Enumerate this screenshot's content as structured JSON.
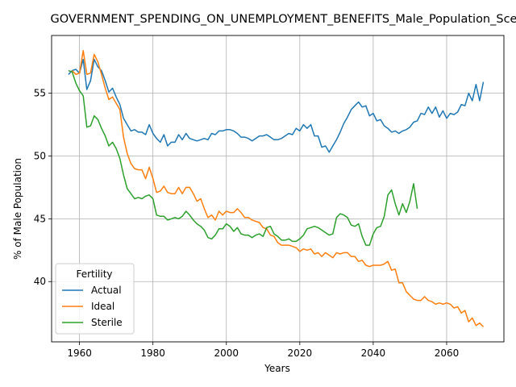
{
  "chart_data": {
    "type": "line",
    "title": "GOVERNMENT_SPENDING_ON_UNEMPLOYMENT_BENEFITS_Male_Population_Sce",
    "xlabel": "Years",
    "ylabel": "% of Male Population",
    "xlim": [
      1952.4,
      2075.6
    ],
    "ylim": [
      35.2,
      59.6
    ],
    "xticks": [
      1960,
      1980,
      2000,
      2020,
      2040,
      2060
    ],
    "yticks": [
      40,
      45,
      50,
      55
    ],
    "grid": true,
    "legend": {
      "title": "Fertility",
      "placement": "lower-left"
    },
    "series": [
      {
        "name": "Actual",
        "color": "#1f77b4",
        "x": [
          1957,
          1958,
          1959,
          1960,
          1961,
          1962,
          1963,
          1964,
          1965,
          1966,
          1967,
          1968,
          1969,
          1970,
          1971,
          1972,
          1973,
          1974,
          1975,
          1976,
          1977,
          1978,
          1979,
          1980,
          1981,
          1982,
          1983,
          1984,
          1985,
          1986,
          1987,
          1988,
          1989,
          1990,
          1991,
          1992,
          1993,
          1994,
          1995,
          1996,
          1997,
          1998,
          1999,
          2000,
          2001,
          2002,
          2003,
          2004,
          2005,
          2006,
          2007,
          2008,
          2009,
          2010,
          2011,
          2012,
          2013,
          2014,
          2015,
          2016,
          2017,
          2018,
          2019,
          2020,
          2021,
          2022,
          2023,
          2024,
          2025,
          2026,
          2027,
          2028,
          2029,
          2030,
          2031,
          2032,
          2033,
          2034,
          2035,
          2036,
          2037,
          2038,
          2039,
          2040,
          2041,
          2042,
          2043,
          2044,
          2045,
          2046,
          2047,
          2048,
          2049,
          2050,
          2051,
          2052,
          2053,
          2054,
          2055,
          2056,
          2057,
          2058,
          2059,
          2060,
          2061,
          2062,
          2063,
          2064,
          2065,
          2066,
          2067,
          2068,
          2069,
          2070
        ],
        "y": [
          56.5,
          56.8,
          56.9,
          56.6,
          57.7,
          55.3,
          56.0,
          57.7,
          57.1,
          56.8,
          56.0,
          55.1,
          55.4,
          54.7,
          54.1,
          53.0,
          52.5,
          52.0,
          52.1,
          51.9,
          51.9,
          51.7,
          52.5,
          51.8,
          51.4,
          51.1,
          51.7,
          50.8,
          51.1,
          51.1,
          51.7,
          51.3,
          51.8,
          51.4,
          51.3,
          51.2,
          51.3,
          51.4,
          51.3,
          51.8,
          51.7,
          52.0,
          52.0,
          52.1,
          52.1,
          52.0,
          51.8,
          51.5,
          51.5,
          51.4,
          51.2,
          51.4,
          51.6,
          51.6,
          51.7,
          51.5,
          51.3,
          51.3,
          51.4,
          51.6,
          51.8,
          51.7,
          52.2,
          52.0,
          52.5,
          52.2,
          52.5,
          51.6,
          51.6,
          50.7,
          50.8,
          50.3,
          50.8,
          51.3,
          51.9,
          52.6,
          53.1,
          53.7,
          54.0,
          54.3,
          53.9,
          54.0,
          53.2,
          53.4,
          52.8,
          52.9,
          52.4,
          52.2,
          51.9,
          52.0,
          51.8,
          52.0,
          52.1,
          52.3,
          52.7,
          52.8,
          53.4,
          53.3,
          53.9,
          53.4,
          53.9,
          53.1,
          53.6,
          53.0,
          53.4,
          53.3,
          53.5,
          54.1,
          54.0,
          55.0,
          54.4,
          55.7,
          54.4,
          55.9
        ]
      },
      {
        "name": "Ideal",
        "color": "#ff7f0e",
        "x": [
          1958,
          1959,
          1960,
          1961,
          1962,
          1963,
          1964,
          1965,
          1966,
          1967,
          1968,
          1969,
          1970,
          1971,
          1972,
          1973,
          1974,
          1975,
          1976,
          1977,
          1978,
          1979,
          1980,
          1981,
          1982,
          1983,
          1984,
          1985,
          1986,
          1987,
          1988,
          1989,
          1990,
          1991,
          1992,
          1993,
          1994,
          1995,
          1996,
          1997,
          1998,
          1999,
          2000,
          2001,
          2002,
          2003,
          2004,
          2005,
          2006,
          2007,
          2008,
          2009,
          2010,
          2011,
          2012,
          2013,
          2014,
          2015,
          2016,
          2017,
          2018,
          2019,
          2020,
          2021,
          2022,
          2023,
          2024,
          2025,
          2026,
          2027,
          2028,
          2029,
          2030,
          2031,
          2032,
          2033,
          2034,
          2035,
          2036,
          2037,
          2038,
          2039,
          2040,
          2041,
          2042,
          2043,
          2044,
          2045,
          2046,
          2047,
          2048,
          2049,
          2050,
          2051,
          2052,
          2053,
          2054,
          2055,
          2056,
          2057,
          2058,
          2059,
          2060,
          2061,
          2062,
          2063,
          2064,
          2065,
          2066,
          2067,
          2068,
          2069,
          2070
        ],
        "y": [
          56.8,
          56.5,
          56.6,
          58.4,
          56.5,
          56.6,
          58.1,
          57.5,
          56.5,
          55.4,
          54.5,
          54.7,
          54.2,
          53.7,
          51.5,
          50.2,
          49.4,
          49.0,
          48.9,
          48.9,
          48.2,
          49.1,
          48.2,
          47.1,
          47.2,
          47.6,
          47.1,
          47.0,
          47.0,
          47.5,
          47.0,
          47.5,
          47.5,
          47.0,
          46.4,
          46.6,
          45.8,
          45.1,
          45.3,
          44.9,
          45.6,
          45.3,
          45.6,
          45.5,
          45.5,
          45.8,
          45.5,
          45.1,
          45.1,
          44.9,
          44.8,
          44.7,
          44.3,
          44.2,
          43.7,
          43.6,
          43.1,
          42.9,
          42.9,
          42.9,
          42.8,
          42.7,
          42.4,
          42.6,
          42.5,
          42.6,
          42.2,
          42.3,
          42.0,
          42.3,
          42.1,
          41.9,
          42.3,
          42.2,
          42.3,
          42.3,
          42.0,
          42.0,
          41.6,
          41.7,
          41.3,
          41.2,
          41.3,
          41.3,
          41.3,
          41.4,
          41.6,
          40.9,
          41.0,
          39.9,
          39.9,
          39.2,
          38.9,
          38.6,
          38.5,
          38.5,
          38.8,
          38.5,
          38.4,
          38.2,
          38.3,
          38.2,
          38.3,
          38.2,
          37.9,
          38.0,
          37.5,
          37.7,
          36.8,
          37.1,
          36.5,
          36.7,
          36.4
        ]
      },
      {
        "name": "Sterile",
        "color": "#2ca02c",
        "x": [
          1957,
          1958,
          1959,
          1960,
          1961,
          1962,
          1963,
          1964,
          1965,
          1966,
          1967,
          1968,
          1969,
          1970,
          1971,
          1972,
          1973,
          1974,
          1975,
          1976,
          1977,
          1978,
          1979,
          1980,
          1981,
          1982,
          1983,
          1984,
          1985,
          1986,
          1987,
          1988,
          1989,
          1990,
          1991,
          1992,
          1993,
          1994,
          1995,
          1996,
          1997,
          1998,
          1999,
          2000,
          2001,
          2002,
          2003,
          2004,
          2005,
          2006,
          2007,
          2008,
          2009,
          2010,
          2011,
          2012,
          2013,
          2014,
          2015,
          2016,
          2017,
          2018,
          2019,
          2020,
          2021,
          2022,
          2023,
          2024,
          2025,
          2026,
          2027,
          2028,
          2029,
          2030,
          2031,
          2032,
          2033,
          2034,
          2035,
          2036,
          2037,
          2038,
          2039,
          2040,
          2041,
          2042,
          2043,
          2044,
          2045,
          2046,
          2047,
          2048,
          2049,
          2050,
          2051,
          2052
        ],
        "y": [
          56.8,
          56.7,
          55.8,
          55.2,
          54.8,
          52.3,
          52.4,
          53.2,
          52.9,
          52.2,
          51.6,
          50.8,
          51.1,
          50.6,
          49.8,
          48.5,
          47.4,
          47.0,
          46.6,
          46.7,
          46.6,
          46.8,
          46.9,
          46.6,
          45.3,
          45.2,
          45.2,
          44.9,
          45.0,
          45.1,
          45.0,
          45.2,
          45.6,
          45.3,
          44.9,
          44.6,
          44.4,
          44.1,
          43.5,
          43.4,
          43.7,
          44.2,
          44.2,
          44.6,
          44.4,
          44.0,
          44.3,
          43.8,
          43.7,
          43.7,
          43.5,
          43.7,
          43.8,
          43.6,
          44.3,
          44.4,
          43.8,
          43.6,
          43.3,
          43.3,
          43.4,
          43.2,
          43.2,
          43.4,
          43.7,
          44.2,
          44.3,
          44.4,
          44.3,
          44.1,
          43.9,
          43.7,
          43.8,
          45.1,
          45.4,
          45.3,
          45.1,
          44.5,
          44.4,
          44.6,
          43.6,
          42.9,
          42.9,
          43.8,
          44.3,
          44.4,
          45.2,
          46.9,
          47.3,
          46.2,
          45.3,
          46.2,
          45.5,
          46.4,
          47.8,
          45.8
        ]
      }
    ]
  }
}
